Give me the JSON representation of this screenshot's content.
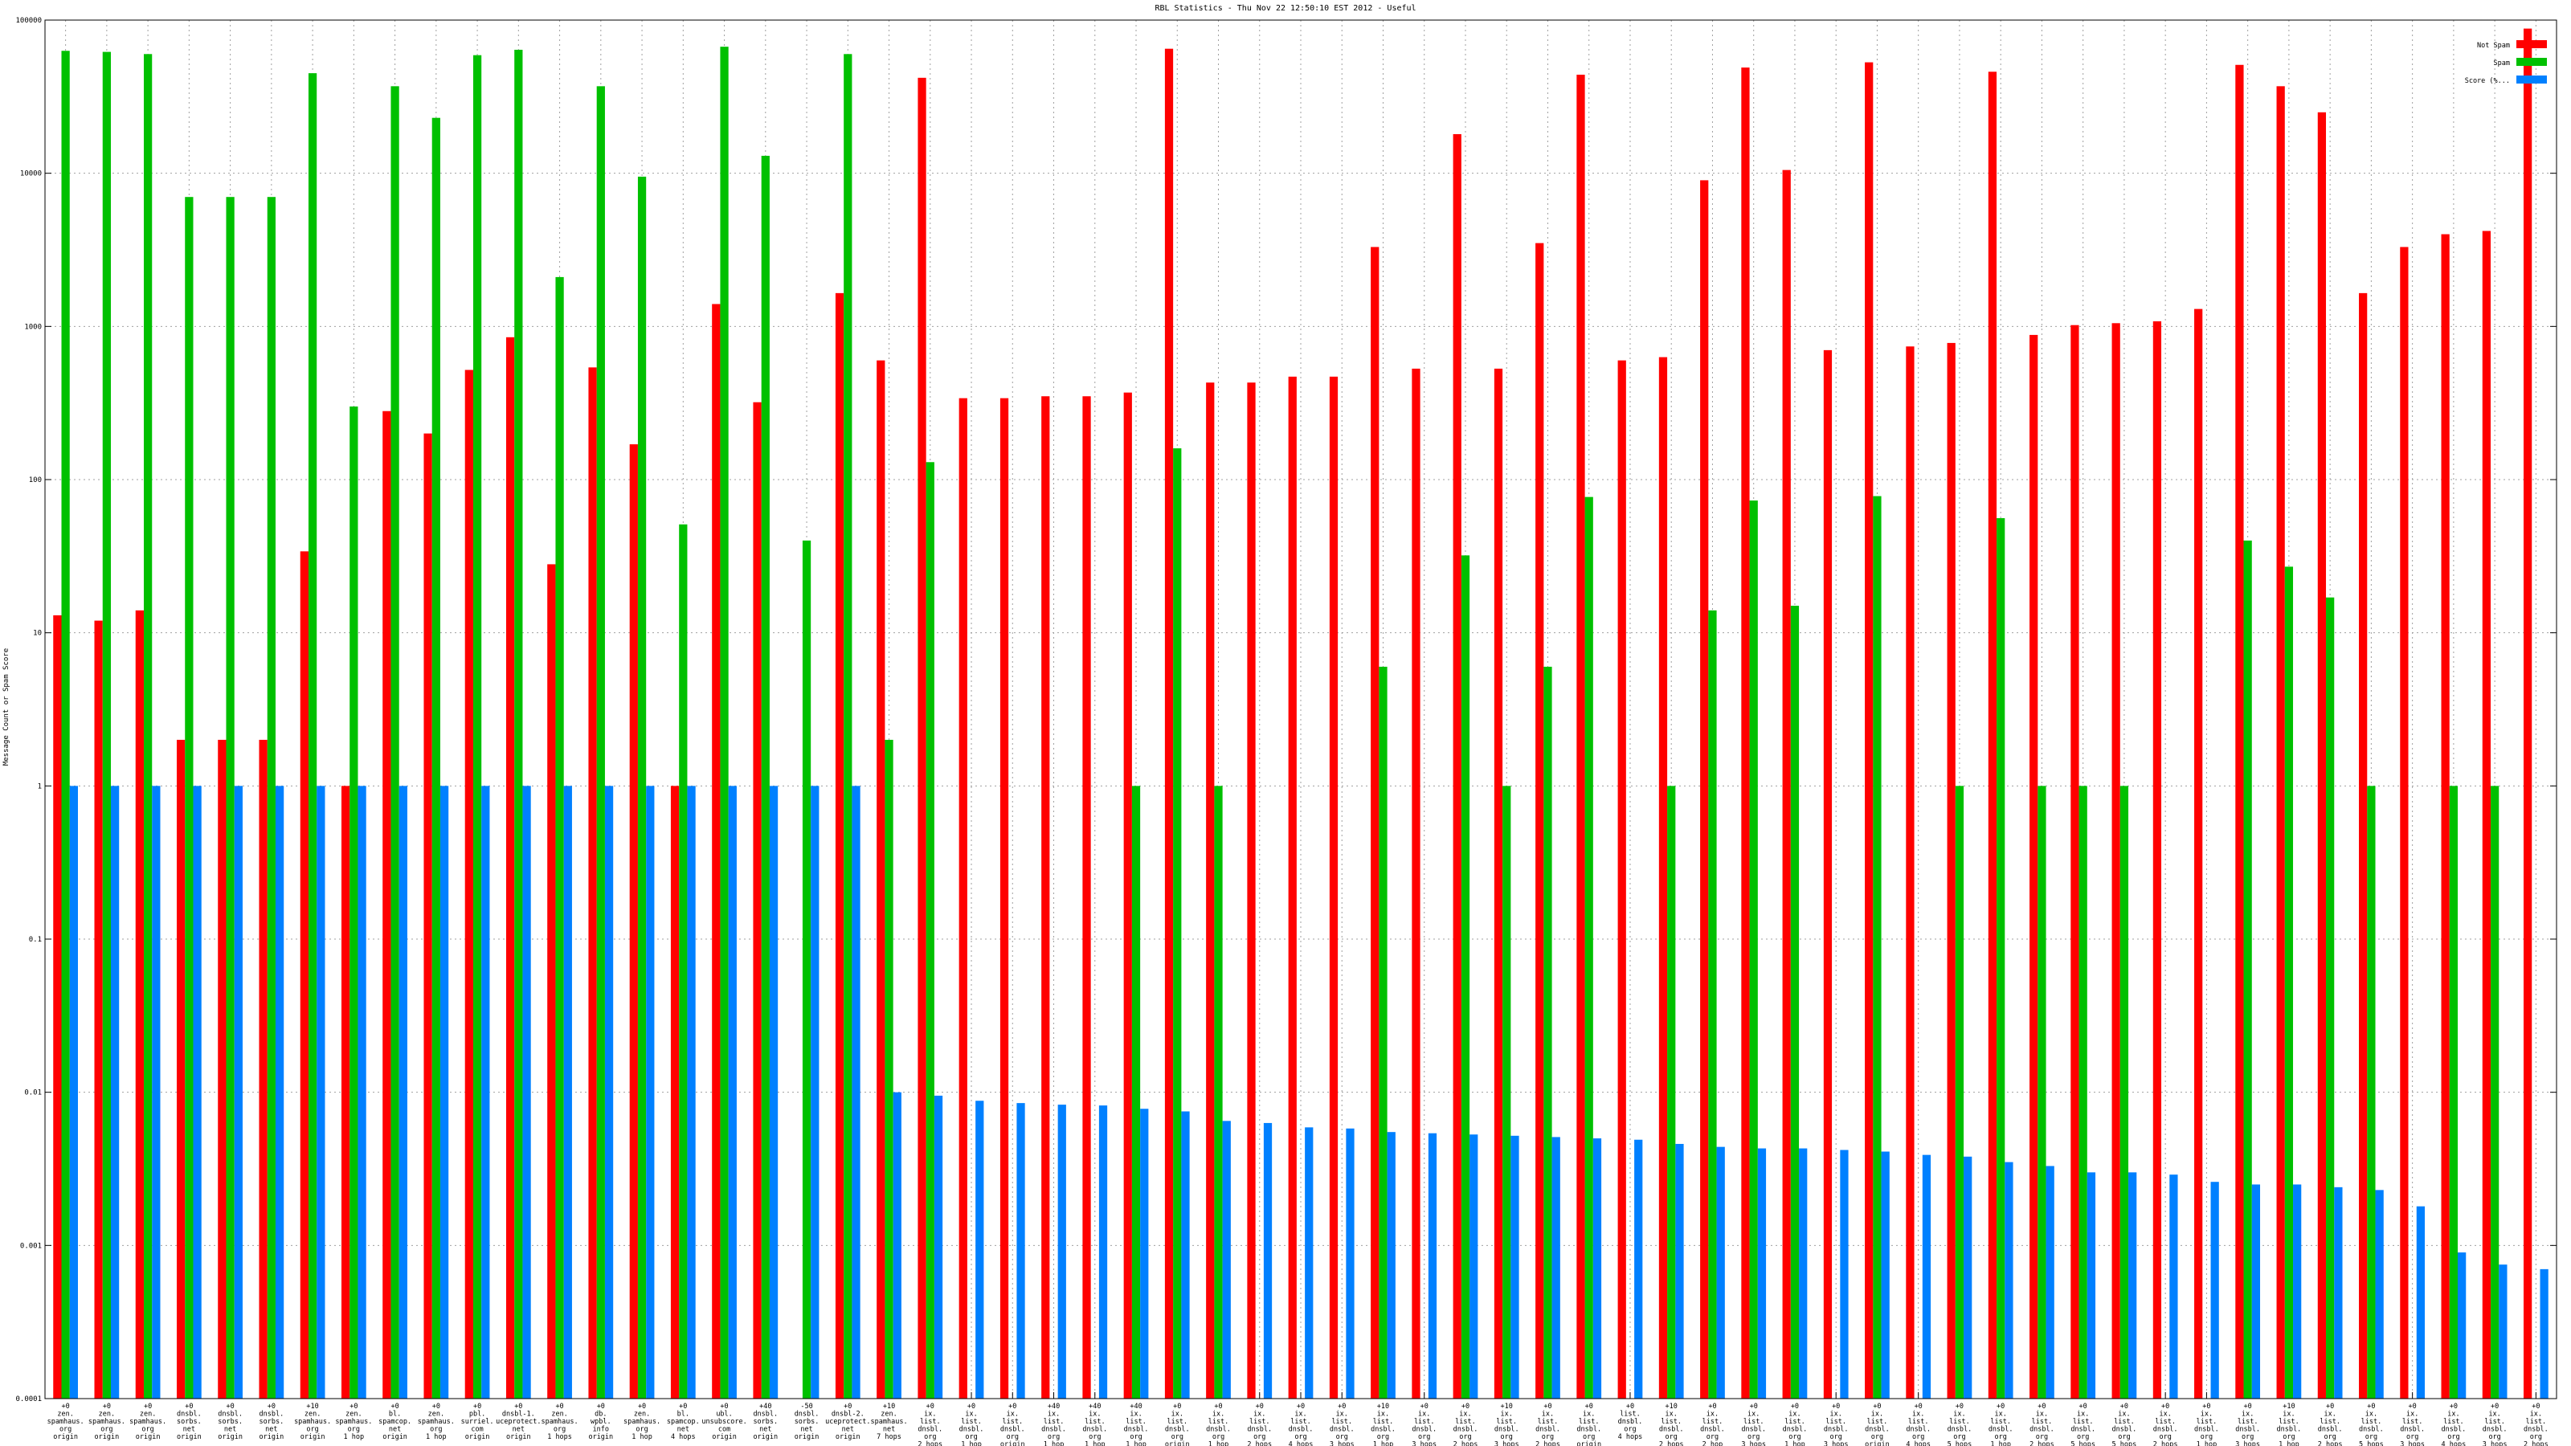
{
  "chart_data": {
    "type": "bar",
    "title": "RBL Statistics - Thu Nov 22 12:50:10 EST 2012 - Useful",
    "xlabel": "",
    "ylabel": "Message Count or Spam Score",
    "yscale": "log",
    "ylim": [
      0.0001,
      100000
    ],
    "y_ticks": [
      "0.0001",
      "0.001",
      "0.01",
      "0.1",
      "1",
      "10",
      "100",
      "1000",
      "10000",
      "100000"
    ],
    "grid": true,
    "legend_position": "top-right",
    "colors": {
      "series0": "#ff0000",
      "series1": "#00c000",
      "series2": "#0080ff",
      "grid": "#a0a0a0",
      "axis": "#000000"
    },
    "categories": [
      [
        "+0",
        "zen.",
        "spamhaus.",
        "org",
        "origin"
      ],
      [
        "+0",
        "zen.",
        "spamhaus.",
        "org",
        "origin"
      ],
      [
        "+0",
        "zen.",
        "spamhaus.",
        "org",
        "origin"
      ],
      [
        "+0",
        "dnsbl.",
        "sorbs.",
        "net",
        "origin"
      ],
      [
        "+0",
        "dnsbl.",
        "sorbs.",
        "net",
        "origin"
      ],
      [
        "+0",
        "dnsbl.",
        "sorbs.",
        "net",
        "origin"
      ],
      [
        "+10",
        "zen.",
        "spamhaus.",
        "org",
        "origin"
      ],
      [
        "+0",
        "zen.",
        "spamhaus.",
        "org",
        "1 hop"
      ],
      [
        "+0",
        "bl.",
        "spamcop.",
        "net",
        "origin"
      ],
      [
        "+0",
        "zen.",
        "spamhaus.",
        "org",
        "1 hop"
      ],
      [
        "+0",
        "pbl.",
        "surriel.",
        "com",
        "origin"
      ],
      [
        "+0",
        "dnsbl-1.",
        "uceprotect.",
        "net",
        "origin"
      ],
      [
        "+0",
        "zen.",
        "spamhaus.",
        "org",
        "1 hops"
      ],
      [
        "+0",
        "db.",
        "wpbl.",
        "info",
        "origin"
      ],
      [
        "+0",
        "zen.",
        "spamhaus.",
        "org",
        "1 hop"
      ],
      [
        "+0",
        "bl.",
        "spamcop.",
        "net",
        "4 hops"
      ],
      [
        "+0",
        "ubl.",
        "unsubscore.",
        "com",
        "origin"
      ],
      [
        "+40",
        "dnsbl.",
        "sorbs.",
        "net",
        "origin"
      ],
      [
        "-50",
        "dnsbl.",
        "sorbs.",
        "net",
        "origin"
      ],
      [
        "+0",
        "dnsbl-2.",
        "uceprotect.",
        "net",
        "origin"
      ],
      [
        "+10",
        "zen.",
        "spamhaus.",
        "net",
        "7 hops"
      ],
      [
        "+0",
        "ix.",
        "list.",
        "dnsbl.",
        "org",
        "2 hops"
      ],
      [
        "+0",
        "ix.",
        "list.",
        "dnsbl.",
        "org",
        "1 hop"
      ],
      [
        "+0",
        "ix.",
        "list.",
        "dnsbl.",
        "org",
        "origin"
      ],
      [
        "+40",
        "ix.",
        "list.",
        "dnsbl.",
        "org",
        "1 hop"
      ],
      [
        "+40",
        "ix.",
        "list.",
        "dnsbl.",
        "org",
        "1 hop"
      ],
      [
        "+40",
        "ix.",
        "list.",
        "dnsbl.",
        "org",
        "1 hop"
      ],
      [
        "+0",
        "ix.",
        "list.",
        "dnsbl.",
        "org",
        "origin"
      ],
      [
        "+0",
        "ix.",
        "list.",
        "dnsbl.",
        "org",
        "1 hop"
      ],
      [
        "+0",
        "ix.",
        "list.",
        "dnsbl.",
        "org",
        "2 hops"
      ],
      [
        "+0",
        "ix.",
        "list.",
        "dnsbl.",
        "org",
        "4 hops"
      ],
      [
        "+0",
        "ix.",
        "list.",
        "dnsbl.",
        "org",
        "3 hops"
      ],
      [
        "+10",
        "ix.",
        "list.",
        "dnsbl.",
        "org",
        "1 hop"
      ],
      [
        "+0",
        "ix.",
        "list.",
        "dnsbl.",
        "org",
        "3 hops"
      ],
      [
        "+0",
        "ix.",
        "list.",
        "dnsbl.",
        "org",
        "2 hops"
      ],
      [
        "+10",
        "ix.",
        "list.",
        "dnsbl.",
        "org",
        "3 hops"
      ],
      [
        "+0",
        "ix.",
        "list.",
        "dnsbl.",
        "org",
        "2 hops"
      ],
      [
        "+0",
        "ix.",
        "list.",
        "dnsbl.",
        "org",
        "origin"
      ],
      [
        "+0",
        "list.",
        "dnsbl.",
        "org",
        "4 hops"
      ],
      [
        "+10",
        "ix.",
        "list.",
        "dnsbl.",
        "org",
        "2 hops"
      ],
      [
        "+0",
        "ix.",
        "list.",
        "dnsbl.",
        "org",
        "2 hop"
      ],
      [
        "+0",
        "ix.",
        "list.",
        "dnsbl.",
        "org",
        "3 hops"
      ],
      [
        "+0",
        "ix.",
        "list.",
        "dnsbl.",
        "org",
        "1 hop"
      ],
      [
        "+0",
        "ix.",
        "list.",
        "dnsbl.",
        "org",
        "3 hops"
      ],
      [
        "+0",
        "ix.",
        "list.",
        "dnsbl.",
        "org",
        "origin"
      ],
      [
        "+0",
        "ix.",
        "list.",
        "dnsbl.",
        "org",
        "4 hops"
      ],
      [
        "+0",
        "ix.",
        "list.",
        "dnsbl.",
        "org",
        "5 hops"
      ],
      [
        "+0",
        "ix.",
        "list.",
        "dnsbl.",
        "org",
        "1 hop"
      ],
      [
        "+0",
        "ix.",
        "list.",
        "dnsbl.",
        "org",
        "2 hops"
      ],
      [
        "+0",
        "ix.",
        "list.",
        "dnsbl.",
        "org",
        "5 hops"
      ],
      [
        "+0",
        "ix.",
        "list.",
        "dnsbl.",
        "org",
        "5 hops"
      ],
      [
        "+0",
        "ix.",
        "list.",
        "dnsbl.",
        "org",
        "2 hops"
      ],
      [
        "+0",
        "ix.",
        "list.",
        "dnsbl.",
        "org",
        "1 hop"
      ],
      [
        "+0",
        "ix.",
        "list.",
        "dnsbl.",
        "org",
        "3 hops"
      ],
      [
        "+10",
        "ix.",
        "list.",
        "dnsbl.",
        "org",
        "1 hop"
      ],
      [
        "+0",
        "ix.",
        "list.",
        "dnsbl.",
        "org",
        "2 hops"
      ],
      [
        "+0",
        "ix.",
        "list.",
        "dnsbl.",
        "org",
        "5 hops"
      ],
      [
        "+0",
        "ix.",
        "list.",
        "dnsbl.",
        "org",
        "3 hops"
      ],
      [
        "+0",
        "ix.",
        "list.",
        "dnsbl.",
        "org",
        "4 hops"
      ],
      [
        "+0",
        "ix.",
        "list.",
        "dnsbl.",
        "org",
        "3 hops"
      ],
      [
        "+0",
        "ix.",
        "list.",
        "dnsbl.",
        "org",
        "2 hops"
      ]
    ],
    "series": [
      {
        "name": "Not Spam",
        "values": [
          13,
          12,
          14,
          2,
          2,
          2,
          34,
          1,
          280,
          200,
          520,
          850,
          28,
          540,
          170,
          1,
          1400,
          320,
          null,
          1650,
          600,
          42000,
          340,
          340,
          350,
          350,
          370,
          65000,
          430,
          430,
          470,
          470,
          3300,
          530,
          18000,
          530,
          3500,
          44000,
          600,
          630,
          9000,
          49000,
          10500,
          700,
          53000,
          740,
          780,
          46000,
          880,
          1020,
          1050,
          1080,
          1300,
          51000,
          37000,
          25000,
          1650,
          3300,
          4000,
          4200,
          88000
        ]
      },
      {
        "name": "Spam",
        "values": [
          63000,
          62000,
          60000,
          7000,
          7000,
          7000,
          45000,
          300,
          37000,
          23000,
          59000,
          64000,
          2100,
          37000,
          9500,
          51,
          67000,
          13000,
          40,
          60000,
          2,
          130,
          null,
          null,
          null,
          null,
          1,
          160,
          1,
          null,
          null,
          null,
          6,
          null,
          32,
          1,
          6,
          77,
          null,
          1,
          14,
          73,
          15,
          null,
          78,
          null,
          1,
          56,
          1,
          1,
          1,
          null,
          null,
          40,
          27,
          17,
          1,
          null,
          1,
          1,
          null
        ]
      },
      {
        "name": "Score (%...",
        "values": [
          1,
          1,
          1,
          1,
          1,
          1,
          1,
          1,
          1,
          1,
          1,
          1,
          1,
          1,
          1,
          1,
          1,
          1,
          1,
          1,
          0.01,
          0.0095,
          0.0088,
          0.0085,
          0.0083,
          0.0082,
          0.0078,
          0.0075,
          0.0065,
          0.0063,
          0.0059,
          0.0058,
          0.0055,
          0.0054,
          0.0053,
          0.0052,
          0.0051,
          0.005,
          0.0049,
          0.0046,
          0.0044,
          0.0043,
          0.0043,
          0.0042,
          0.0041,
          0.0039,
          0.0038,
          0.0035,
          0.0033,
          0.003,
          0.003,
          0.0029,
          0.0026,
          0.0025,
          0.0025,
          0.0024,
          0.0023,
          0.0018,
          0.0009,
          0.00075,
          0.0007
        ]
      }
    ]
  }
}
